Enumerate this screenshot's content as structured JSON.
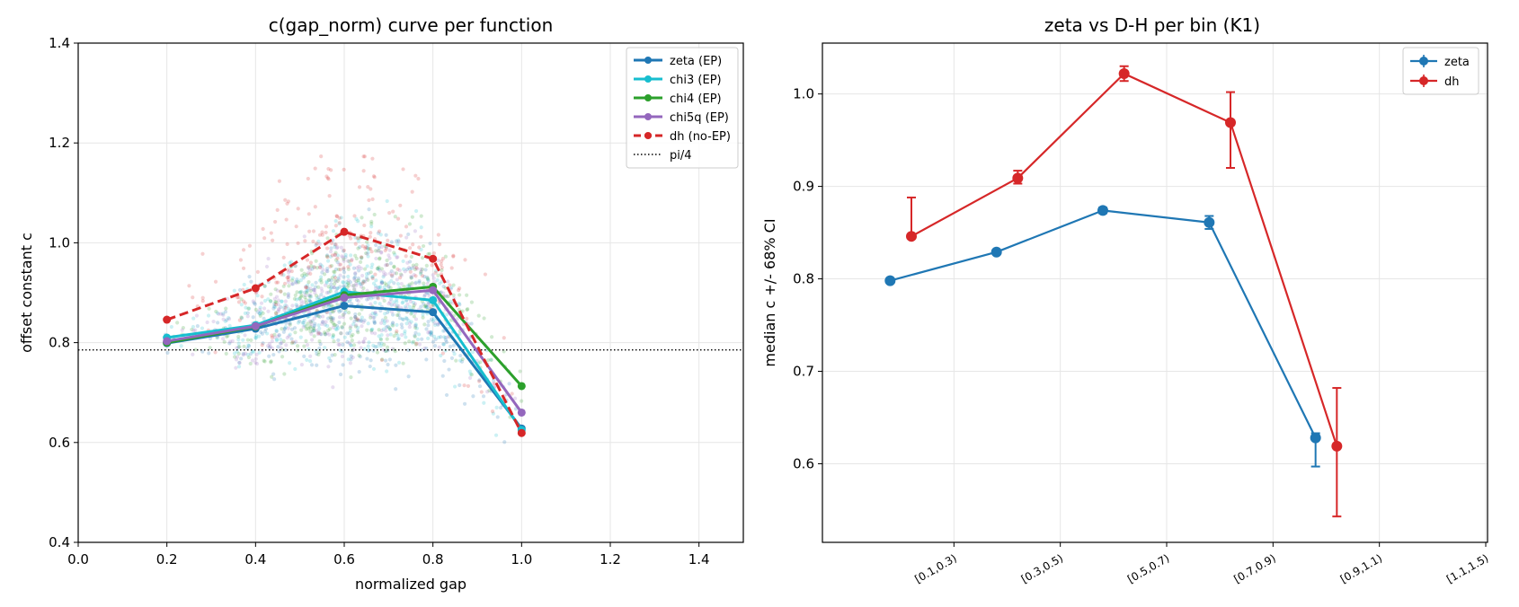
{
  "chart_data": [
    {
      "type": "line",
      "title": "c(gap_norm) curve per function",
      "xlabel": "normalized gap",
      "ylabel": "offset constant c",
      "xlim": [
        0.0,
        1.5
      ],
      "ylim": [
        0.4,
        1.4
      ],
      "xticks": [
        "0.0",
        "0.2",
        "0.4",
        "0.6",
        "0.8",
        "1.0",
        "1.2",
        "1.4"
      ],
      "yticks": [
        "0.4",
        "0.6",
        "0.8",
        "1.0",
        "1.2",
        "1.4"
      ],
      "grid": true,
      "legend_position": "top-right",
      "reference_line": {
        "name": "pi/4",
        "y": 0.7854,
        "style": "dotted",
        "color": "#000000"
      },
      "series": [
        {
          "name": "zeta (EP)",
          "color": "#1f77b4",
          "style": "solid",
          "x": [
            0.2,
            0.4,
            0.6,
            0.8,
            1.0
          ],
          "y": [
            0.799,
            0.828,
            0.874,
            0.861,
            0.628
          ]
        },
        {
          "name": "chi3 (EP)",
          "color": "#17becf",
          "style": "solid",
          "x": [
            0.2,
            0.4,
            0.6,
            0.8,
            1.0
          ],
          "y": [
            0.81,
            0.835,
            0.902,
            0.885,
            0.625
          ]
        },
        {
          "name": "chi4 (EP)",
          "color": "#2ca02c",
          "style": "solid",
          "x": [
            0.2,
            0.4,
            0.6,
            0.8,
            1.0
          ],
          "y": [
            0.8,
            0.832,
            0.895,
            0.912,
            0.713
          ]
        },
        {
          "name": "chi5q (EP)",
          "color": "#9467bd",
          "style": "solid",
          "x": [
            0.2,
            0.4,
            0.6,
            0.8,
            1.0
          ],
          "y": [
            0.803,
            0.833,
            0.89,
            0.905,
            0.66
          ]
        },
        {
          "name": "dh (no-EP)",
          "color": "#d62728",
          "style": "dashed",
          "x": [
            0.2,
            0.4,
            0.6,
            0.8,
            1.0
          ],
          "y": [
            0.846,
            0.909,
            1.022,
            0.968,
            0.619
          ]
        }
      ]
    },
    {
      "type": "line",
      "title": "zeta vs D-H per bin (K1)",
      "xlabel": "",
      "ylabel": "median c +/- 68% CI",
      "categories": [
        "[0.1,0.3)",
        "[0.3,0.5)",
        "[0.5,0.7)",
        "[0.7,0.9)",
        "[0.9,1.1)",
        "[1.1,1.5)"
      ],
      "ylim": [
        0.515,
        1.055
      ],
      "yticks": [
        "0.6",
        "0.7",
        "0.8",
        "0.9",
        "1.0"
      ],
      "grid": true,
      "legend_position": "top-right",
      "series": [
        {
          "name": "zeta",
          "color": "#1f77b4",
          "x": [
            0.4,
            1.4,
            2.4,
            3.4,
            4.4
          ],
          "y": [
            0.798,
            0.829,
            0.874,
            0.861,
            0.628
          ],
          "err_low": [
            0.001,
            0.002,
            0.003,
            0.007,
            0.031
          ],
          "err_high": [
            0.001,
            0.002,
            0.003,
            0.007,
            0.005
          ]
        },
        {
          "name": "dh",
          "color": "#d62728",
          "x": [
            0.6,
            1.6,
            2.6,
            3.6,
            4.6
          ],
          "y": [
            0.846,
            0.909,
            1.022,
            0.969,
            0.619
          ],
          "err_low": [
            0.002,
            0.006,
            0.008,
            0.049,
            0.076
          ],
          "err_high": [
            0.042,
            0.008,
            0.008,
            0.033,
            0.063
          ]
        }
      ]
    }
  ]
}
